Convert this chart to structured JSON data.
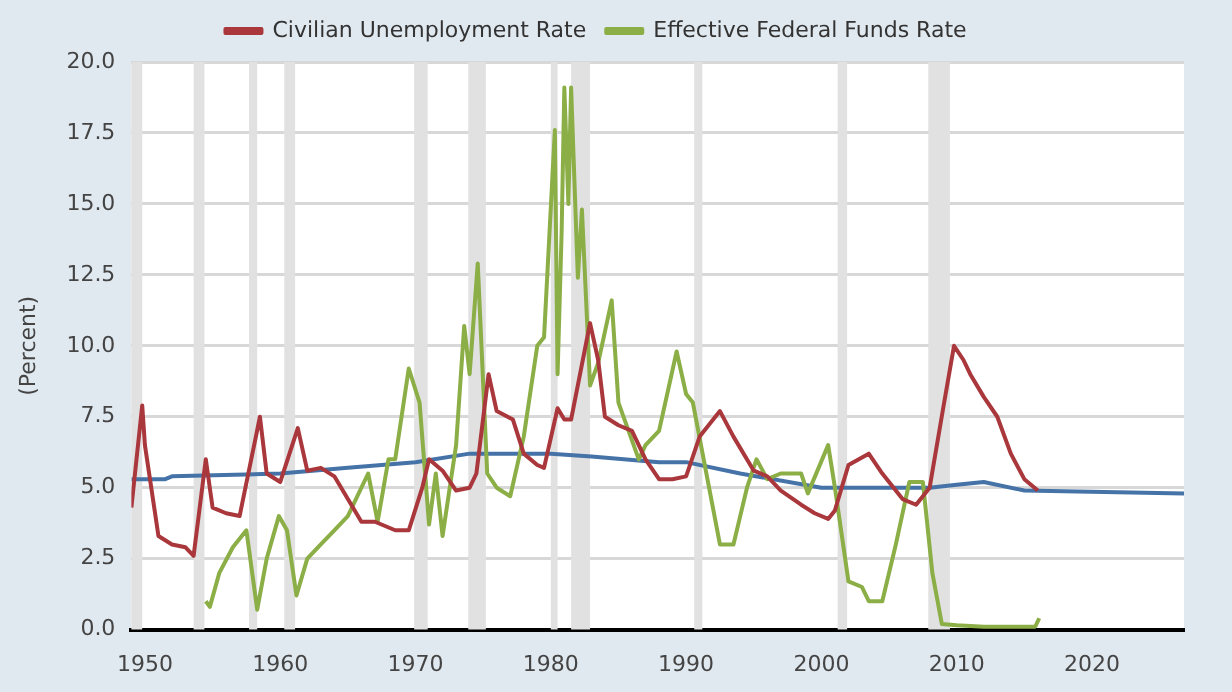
{
  "chart_data": {
    "type": "line",
    "ylabel": "(Percent)",
    "xlim": [
      1949,
      2026.8
    ],
    "xticks": [
      1950,
      1960,
      1970,
      1980,
      1990,
      2000,
      2010,
      2020
    ],
    "ylim": [
      0,
      20
    ],
    "yticks": [
      {
        "value": 0,
        "label": "0.0"
      },
      {
        "value": 2.5,
        "label": "2.5"
      },
      {
        "value": 5,
        "label": "5.0"
      },
      {
        "value": 7.5,
        "label": "7.5"
      },
      {
        "value": 10,
        "label": "10.0"
      },
      {
        "value": 12.5,
        "label": "12.5"
      },
      {
        "value": 15,
        "label": "15.0"
      },
      {
        "value": 17.5,
        "label": "17.5"
      },
      {
        "value": 20,
        "label": "20.0"
      }
    ],
    "grid": "y",
    "legend": "top",
    "marker": "none",
    "line_style": "solid",
    "series": [
      {
        "name": "Civilian Unemployment Rate",
        "color": "#a9373b",
        "x": [
          1949,
          1949.8,
          1950,
          1951,
          1952,
          1953,
          1953.6,
          1954.5,
          1955,
          1956,
          1957,
          1958.5,
          1959,
          1960,
          1961.3,
          1962,
          1963,
          1964,
          1965,
          1966,
          1967,
          1968.5,
          1969.5,
          1970.5,
          1971,
          1972,
          1973,
          1974,
          1974.5,
          1975.4,
          1976,
          1977.2,
          1978,
          1979,
          1979.5,
          1980.5,
          1981,
          1981.5,
          1982.9,
          1983.5,
          1984,
          1985,
          1986,
          1987,
          1988,
          1989,
          1990,
          1991,
          1992.5,
          1993.5,
          1995,
          1996,
          1997,
          1998.5,
          1999.5,
          2000.5,
          2001,
          2002,
          2003.5,
          2004.5,
          2006,
          2007,
          2008,
          2009,
          2009.8,
          2010.5,
          2011,
          2012,
          2013,
          2014,
          2015,
          2016
        ],
        "values": [
          4.3,
          7.9,
          6.5,
          3.3,
          3.0,
          2.9,
          2.6,
          6.0,
          4.3,
          4.1,
          4.0,
          7.5,
          5.5,
          5.2,
          7.1,
          5.6,
          5.7,
          5.4,
          4.6,
          3.8,
          3.8,
          3.5,
          3.5,
          5.0,
          6.0,
          5.6,
          4.9,
          5.0,
          5.5,
          9.0,
          7.7,
          7.4,
          6.2,
          5.8,
          5.7,
          7.8,
          7.4,
          7.4,
          10.8,
          9.5,
          7.5,
          7.2,
          7.0,
          6.0,
          5.3,
          5.3,
          5.4,
          6.8,
          7.7,
          6.8,
          5.6,
          5.4,
          4.9,
          4.4,
          4.1,
          3.9,
          4.2,
          5.8,
          6.2,
          5.5,
          4.6,
          4.4,
          5.0,
          7.8,
          10.0,
          9.5,
          9.0,
          8.2,
          7.5,
          6.2,
          5.3,
          4.9
        ]
      },
      {
        "name": "Effective Federal Funds Rate",
        "color": "#8bae46",
        "x": [
          1954.5,
          1954.8,
          1955.5,
          1956.5,
          1957.5,
          1958.3,
          1959,
          1959.9,
          1960.5,
          1961.2,
          1962,
          1963,
          1964,
          1965,
          1966.5,
          1967.2,
          1968,
          1968.5,
          1969.5,
          1970.3,
          1971,
          1971.5,
          1972,
          1973,
          1973.6,
          1974,
          1974.6,
          1975.3,
          1976,
          1977,
          1978,
          1979,
          1979.5,
          1980.3,
          1980.5,
          1980.8,
          1981,
          1981.3,
          1981.5,
          1982,
          1982.3,
          1982.9,
          1983.5,
          1984.5,
          1985,
          1986.5,
          1987,
          1988,
          1989.3,
          1990,
          1990.5,
          1991.5,
          1992.5,
          1993.5,
          1994.5,
          1995.2,
          1996,
          1997,
          1998.5,
          1999,
          2000.5,
          2001,
          2002,
          2003,
          2003.5,
          2004.5,
          2005.5,
          2006.5,
          2007.5,
          2008.2,
          2008.9,
          2010,
          2012,
          2014,
          2015.8,
          2016.1
        ],
        "values": [
          1.0,
          0.8,
          2.0,
          2.9,
          3.5,
          0.7,
          2.5,
          4.0,
          3.5,
          1.2,
          2.5,
          3.0,
          3.5,
          4.0,
          5.5,
          3.8,
          6.0,
          6.0,
          9.2,
          8.0,
          3.7,
          5.5,
          3.3,
          6.5,
          10.7,
          9.0,
          12.9,
          5.5,
          5.0,
          4.7,
          6.8,
          10.0,
          10.3,
          17.6,
          9.0,
          14.0,
          19.1,
          15.0,
          19.1,
          12.4,
          14.8,
          8.6,
          9.4,
          11.6,
          8.0,
          6.0,
          6.5,
          7.0,
          9.8,
          8.3,
          8.0,
          5.5,
          3.0,
          3.0,
          5.0,
          6.0,
          5.3,
          5.5,
          5.5,
          4.8,
          6.5,
          5.0,
          1.7,
          1.5,
          1.0,
          1.0,
          3.0,
          5.2,
          5.2,
          2.0,
          0.2,
          0.15,
          0.1,
          0.1,
          0.1,
          0.4
        ]
      },
      {
        "color": "#4572a7",
        "x": [
          1949,
          1951.5,
          1952,
          1960,
          1965,
          1970,
          1974,
          1980,
          1983,
          1988,
          1990,
          1994,
          2000,
          2008,
          2010,
          2012,
          2015,
          2026.8
        ],
        "values": [
          5.3,
          5.3,
          5.4,
          5.5,
          5.7,
          5.9,
          6.2,
          6.2,
          6.1,
          5.9,
          5.9,
          5.5,
          5.0,
          5.0,
          5.1,
          5.2,
          4.9,
          4.8
        ]
      }
    ],
    "bands": [
      {
        "axis": "x",
        "from": 1948.9,
        "to": 1949.8,
        "color": "#e1e1e1"
      },
      {
        "axis": "x",
        "from": 1953.6,
        "to": 1954.4,
        "color": "#e1e1e1"
      },
      {
        "axis": "x",
        "from": 1957.7,
        "to": 1958.3,
        "color": "#e1e1e1"
      },
      {
        "axis": "x",
        "from": 1960.3,
        "to": 1961.1,
        "color": "#e1e1e1"
      },
      {
        "axis": "x",
        "from": 1969.9,
        "to": 1970.9,
        "color": "#e1e1e1"
      },
      {
        "axis": "x",
        "from": 1973.9,
        "to": 1975.2,
        "color": "#e1e1e1"
      },
      {
        "axis": "x",
        "from": 1980,
        "to": 1980.5,
        "color": "#e1e1e1"
      },
      {
        "axis": "x",
        "from": 1981.5,
        "to": 1982.9,
        "color": "#e1e1e1"
      },
      {
        "axis": "x",
        "from": 1990.6,
        "to": 1991.2,
        "color": "#e1e1e1"
      },
      {
        "axis": "x",
        "from": 2001.2,
        "to": 2001.9,
        "color": "#e1e1e1"
      },
      {
        "axis": "x",
        "from": 2007.9,
        "to": 2009.5,
        "color": "#e1e1e1"
      }
    ]
  }
}
